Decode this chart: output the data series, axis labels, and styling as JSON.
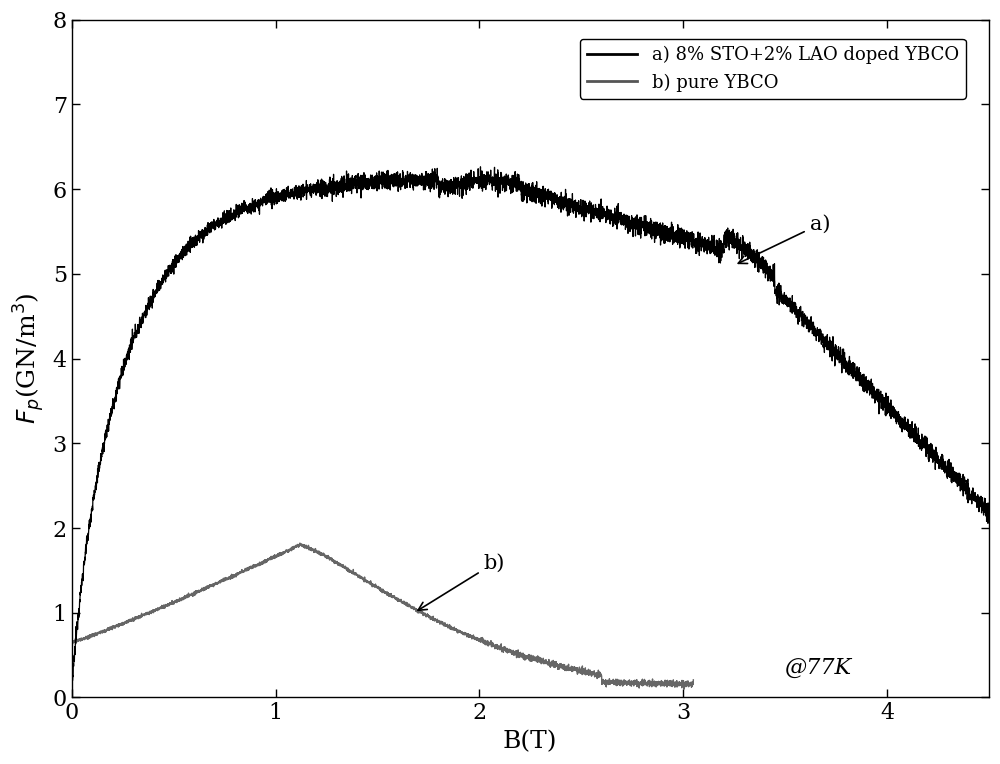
{
  "xlabel": "B(T)",
  "ylabel": "F_p(GN/m^3)",
  "xlim": [
    0,
    4.5
  ],
  "ylim": [
    0,
    8
  ],
  "xticks": [
    0,
    1,
    2,
    3,
    4
  ],
  "yticks": [
    0,
    1,
    2,
    3,
    4,
    5,
    6,
    7,
    8
  ],
  "annotation_77K": "@77K",
  "annotation_a": "a)",
  "annotation_b": "b)",
  "legend_a": "a) 8% STO+2% LAO doped YBCO",
  "legend_b": "b) pure YBCO",
  "color_a": "#000000",
  "color_b": "#555555",
  "figsize": [
    10.0,
    7.64
  ],
  "dpi": 100
}
